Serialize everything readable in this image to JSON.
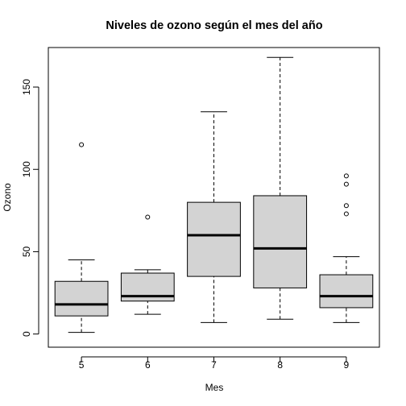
{
  "chart_data": {
    "type": "boxplot",
    "title": "Niveles de ozono según el mes del año",
    "xlabel": "Mes",
    "ylabel": "Ozono",
    "categories": [
      "5",
      "6",
      "7",
      "8",
      "9"
    ],
    "ylim": [
      -8,
      174
    ],
    "yticks": [
      "0",
      "50",
      "100",
      "150"
    ],
    "box_color": "#d3d3d3",
    "series": [
      {
        "category": "5",
        "whisker_low": 1,
        "q1": 11,
        "median": 18,
        "q3": 32,
        "whisker_high": 45,
        "outliers": [
          115
        ]
      },
      {
        "category": "6",
        "whisker_low": 12,
        "q1": 20,
        "median": 23,
        "q3": 37,
        "whisker_high": 39,
        "outliers": [
          71
        ]
      },
      {
        "category": "7",
        "whisker_low": 7,
        "q1": 35,
        "median": 60,
        "q3": 80,
        "whisker_high": 135,
        "outliers": []
      },
      {
        "category": "8",
        "whisker_low": 9,
        "q1": 28,
        "median": 52,
        "q3": 84,
        "whisker_high": 168,
        "outliers": []
      },
      {
        "category": "9",
        "whisker_low": 7,
        "q1": 16,
        "median": 23,
        "q3": 36,
        "whisker_high": 47,
        "outliers": [
          73,
          78,
          91,
          96
        ]
      }
    ]
  }
}
